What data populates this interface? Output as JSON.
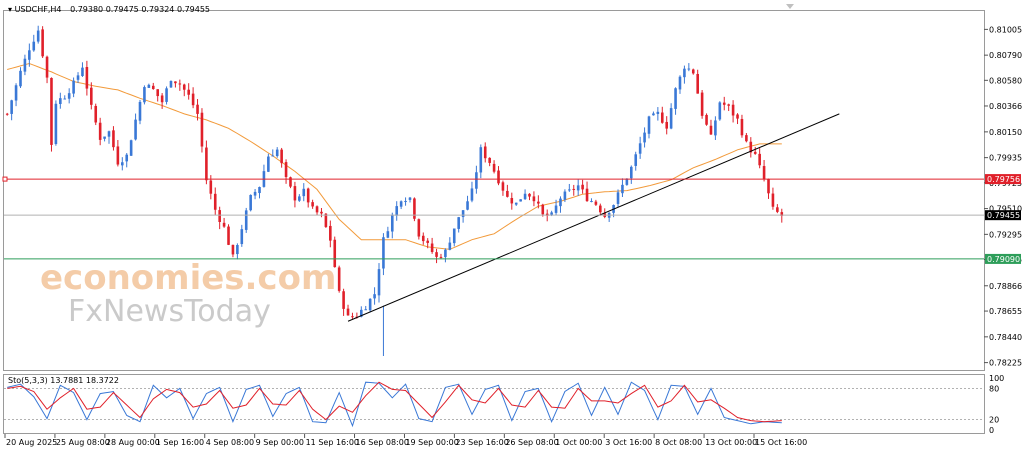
{
  "chart_data": {
    "type": "candlestick",
    "symbol_label": "USDCHF,H4",
    "ohlc_label": "0.79380 0.79475 0.79324 0.79455",
    "price_axis": {
      "ylim": [
        0.7818,
        0.8115
      ],
      "ticks": [
        "0.81005",
        "0.80790",
        "0.80580",
        "0.80366",
        "0.80150",
        "0.79935",
        "0.79725",
        "0.79510",
        "0.79295",
        "0.79085",
        "0.78866",
        "0.78655",
        "0.78440",
        "0.78225"
      ]
    },
    "badges": [
      {
        "label": "0.79756",
        "value": 0.79756,
        "color": "#e0202a",
        "line": true
      },
      {
        "label": "0.79455",
        "value": 0.79455,
        "color": "#000000",
        "line": true
      },
      {
        "label": "0.79090",
        "value": 0.7909,
        "color": "#2e9e5a",
        "line": true
      }
    ],
    "time_axis": [
      "20 Aug 2025",
      "25 Aug 08:00",
      "28 Aug 00:00",
      "1 Sep 16:00",
      "4 Sep 08:00",
      "9 Sep 00:00",
      "11 Sep 16:00",
      "16 Sep 08:00",
      "19 Sep 00:00",
      "23 Sep 16:00",
      "26 Sep 08:00",
      "1 Oct 00:00",
      "3 Oct 16:00",
      "8 Oct 08:00",
      "13 Oct 00:00",
      "15 Oct 16:00"
    ],
    "close_path": [
      [
        0,
        0.803
      ],
      [
        3,
        0.8065
      ],
      [
        5,
        0.8085
      ],
      [
        7,
        0.81
      ],
      [
        9,
        0.806
      ],
      [
        10,
        0.8005
      ],
      [
        11,
        0.804
      ],
      [
        13,
        0.8045
      ],
      [
        15,
        0.8055
      ],
      [
        17,
        0.807
      ],
      [
        19,
        0.8035
      ],
      [
        21,
        0.801
      ],
      [
        23,
        0.8015
      ],
      [
        25,
        0.799
      ],
      [
        27,
        0.7995
      ],
      [
        29,
        0.8025
      ],
      [
        31,
        0.8055
      ],
      [
        33,
        0.805
      ],
      [
        35,
        0.804
      ],
      [
        37,
        0.806
      ],
      [
        39,
        0.8055
      ],
      [
        41,
        0.8045
      ],
      [
        43,
        0.803
      ],
      [
        45,
        0.7975
      ],
      [
        47,
        0.795
      ],
      [
        49,
        0.7935
      ],
      [
        51,
        0.791
      ],
      [
        53,
        0.7935
      ],
      [
        55,
        0.796
      ],
      [
        57,
        0.797
      ],
      [
        59,
        0.7995
      ],
      [
        61,
        0.8
      ],
      [
        63,
        0.7975
      ],
      [
        65,
        0.796
      ],
      [
        67,
        0.7965
      ],
      [
        69,
        0.795
      ],
      [
        71,
        0.7945
      ],
      [
        73,
        0.7925
      ],
      [
        75,
        0.788
      ],
      [
        77,
        0.786
      ],
      [
        79,
        0.7862
      ],
      [
        81,
        0.787
      ],
      [
        83,
        0.788
      ],
      [
        85,
        0.7925
      ],
      [
        87,
        0.7945
      ],
      [
        89,
        0.796
      ],
      [
        91,
        0.796
      ],
      [
        93,
        0.793
      ],
      [
        95,
        0.792
      ],
      [
        97,
        0.791
      ],
      [
        99,
        0.7915
      ],
      [
        101,
        0.7935
      ],
      [
        103,
        0.795
      ],
      [
        105,
        0.7965
      ],
      [
        107,
        0.8
      ],
      [
        109,
        0.799
      ],
      [
        111,
        0.7975
      ],
      [
        113,
        0.796
      ],
      [
        115,
        0.7955
      ],
      [
        117,
        0.7965
      ],
      [
        119,
        0.796
      ],
      [
        121,
        0.7945
      ],
      [
        123,
        0.7945
      ],
      [
        125,
        0.796
      ],
      [
        127,
        0.7965
      ],
      [
        129,
        0.797
      ],
      [
        131,
        0.796
      ],
      [
        133,
        0.7955
      ],
      [
        135,
        0.7945
      ],
      [
        137,
        0.7955
      ],
      [
        139,
        0.797
      ],
      [
        141,
        0.7985
      ],
      [
        143,
        0.8005
      ],
      [
        145,
        0.8025
      ],
      [
        147,
        0.803
      ],
      [
        149,
        0.802
      ],
      [
        151,
        0.805
      ],
      [
        153,
        0.807
      ],
      [
        155,
        0.8065
      ],
      [
        157,
        0.803
      ],
      [
        159,
        0.801
      ],
      [
        161,
        0.804
      ],
      [
        163,
        0.8035
      ],
      [
        165,
        0.8025
      ],
      [
        167,
        0.8005
      ],
      [
        169,
        0.7995
      ],
      [
        171,
        0.7975
      ],
      [
        173,
        0.795
      ],
      [
        175,
        0.7945
      ]
    ],
    "ma_path": [
      [
        0,
        0.8067
      ],
      [
        5,
        0.8072
      ],
      [
        10,
        0.8065
      ],
      [
        15,
        0.8057
      ],
      [
        20,
        0.8053
      ],
      [
        25,
        0.805
      ],
      [
        30,
        0.8043
      ],
      [
        35,
        0.8037
      ],
      [
        40,
        0.803
      ],
      [
        45,
        0.8025
      ],
      [
        50,
        0.8018
      ],
      [
        55,
        0.8007
      ],
      [
        60,
        0.7995
      ],
      [
        65,
        0.7982
      ],
      [
        70,
        0.7967
      ],
      [
        75,
        0.7942
      ],
      [
        80,
        0.7925
      ],
      [
        85,
        0.7925
      ],
      [
        90,
        0.7925
      ],
      [
        95,
        0.7919
      ],
      [
        100,
        0.7917
      ],
      [
        105,
        0.7925
      ],
      [
        110,
        0.793
      ],
      [
        115,
        0.7942
      ],
      [
        120,
        0.7953
      ],
      [
        125,
        0.7957
      ],
      [
        130,
        0.7963
      ],
      [
        135,
        0.7965
      ],
      [
        140,
        0.7966
      ],
      [
        145,
        0.797
      ],
      [
        150,
        0.7975
      ],
      [
        155,
        0.7985
      ],
      [
        160,
        0.7992
      ],
      [
        165,
        0.8
      ],
      [
        170,
        0.8005
      ],
      [
        175,
        0.8005
      ]
    ],
    "trendline": {
      "x0": 77,
      "y0": 0.7857,
      "x1": 188,
      "y1": 0.803
    },
    "series_count": 176,
    "stochastic": {
      "label": "Sto(5,3,3) 13.7881 18.3722",
      "ylim": [
        0,
        100
      ],
      "ticks": [
        "100",
        "80",
        "20",
        "0"
      ],
      "levels": [
        80,
        20
      ],
      "main_path": [
        [
          0,
          82
        ],
        [
          3,
          88
        ],
        [
          6,
          64
        ],
        [
          9,
          22
        ],
        [
          12,
          86
        ],
        [
          15,
          72
        ],
        [
          18,
          20
        ],
        [
          21,
          70
        ],
        [
          24,
          74
        ],
        [
          27,
          28
        ],
        [
          30,
          16
        ],
        [
          33,
          86
        ],
        [
          36,
          62
        ],
        [
          39,
          80
        ],
        [
          42,
          22
        ],
        [
          45,
          70
        ],
        [
          48,
          82
        ],
        [
          51,
          16
        ],
        [
          54,
          78
        ],
        [
          57,
          86
        ],
        [
          60,
          26
        ],
        [
          63,
          70
        ],
        [
          66,
          82
        ],
        [
          69,
          16
        ],
        [
          72,
          14
        ],
        [
          75,
          72
        ],
        [
          78,
          8
        ],
        [
          81,
          92
        ],
        [
          84,
          90
        ],
        [
          87,
          62
        ],
        [
          90,
          88
        ],
        [
          93,
          22
        ],
        [
          96,
          16
        ],
        [
          99,
          82
        ],
        [
          102,
          88
        ],
        [
          105,
          30
        ],
        [
          108,
          78
        ],
        [
          111,
          86
        ],
        [
          114,
          18
        ],
        [
          117,
          74
        ],
        [
          120,
          80
        ],
        [
          123,
          16
        ],
        [
          126,
          74
        ],
        [
          129,
          90
        ],
        [
          132,
          28
        ],
        [
          135,
          82
        ],
        [
          138,
          30
        ],
        [
          141,
          92
        ],
        [
          144,
          76
        ],
        [
          147,
          20
        ],
        [
          150,
          86
        ],
        [
          153,
          84
        ],
        [
          156,
          30
        ],
        [
          159,
          80
        ],
        [
          162,
          24
        ],
        [
          165,
          18
        ],
        [
          168,
          12
        ],
        [
          171,
          16
        ],
        [
          175,
          14
        ]
      ],
      "signal_path": [
        [
          0,
          80
        ],
        [
          3,
          84
        ],
        [
          6,
          74
        ],
        [
          9,
          40
        ],
        [
          12,
          62
        ],
        [
          15,
          80
        ],
        [
          18,
          40
        ],
        [
          21,
          44
        ],
        [
          24,
          72
        ],
        [
          27,
          48
        ],
        [
          30,
          24
        ],
        [
          33,
          60
        ],
        [
          36,
          78
        ],
        [
          39,
          72
        ],
        [
          42,
          44
        ],
        [
          45,
          50
        ],
        [
          48,
          76
        ],
        [
          51,
          42
        ],
        [
          54,
          48
        ],
        [
          57,
          80
        ],
        [
          60,
          50
        ],
        [
          63,
          48
        ],
        [
          66,
          76
        ],
        [
          69,
          40
        ],
        [
          72,
          20
        ],
        [
          75,
          46
        ],
        [
          78,
          34
        ],
        [
          81,
          66
        ],
        [
          84,
          92
        ],
        [
          87,
          78
        ],
        [
          90,
          76
        ],
        [
          93,
          50
        ],
        [
          96,
          24
        ],
        [
          99,
          54
        ],
        [
          102,
          86
        ],
        [
          105,
          58
        ],
        [
          108,
          52
        ],
        [
          111,
          80
        ],
        [
          114,
          48
        ],
        [
          117,
          44
        ],
        [
          120,
          76
        ],
        [
          123,
          44
        ],
        [
          126,
          42
        ],
        [
          129,
          80
        ],
        [
          132,
          56
        ],
        [
          135,
          56
        ],
        [
          138,
          52
        ],
        [
          141,
          70
        ],
        [
          144,
          86
        ],
        [
          147,
          44
        ],
        [
          150,
          56
        ],
        [
          153,
          86
        ],
        [
          156,
          54
        ],
        [
          159,
          58
        ],
        [
          162,
          42
        ],
        [
          165,
          24
        ],
        [
          168,
          18
        ],
        [
          171,
          16
        ],
        [
          175,
          18
        ]
      ]
    },
    "colors": {
      "bull": "#3a78d6",
      "bear": "#e0202a",
      "ma": "#f29a3a",
      "trend": "#000000",
      "stoch_main": "#3a78d6",
      "stoch_signal": "#e0202a"
    }
  },
  "watermark": {
    "line1": "economies.com",
    "line2": "FxNewsToday"
  }
}
